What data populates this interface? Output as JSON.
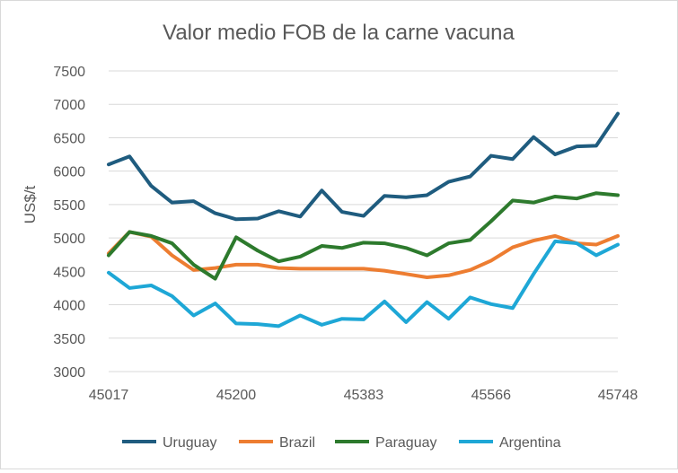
{
  "chart_data": {
    "type": "line",
    "title": "Valor medio FOB de la carne vacuna",
    "xlabel": "",
    "ylabel": "US$/t",
    "ylim": [
      3000,
      7500
    ],
    "yticks": [
      3000,
      3500,
      4000,
      4500,
      5000,
      5500,
      6000,
      6500,
      7000,
      7500
    ],
    "xlim": [
      45017,
      45748
    ],
    "xticks": [
      45017,
      45200,
      45383,
      45566,
      45748
    ],
    "grid": "horizontal",
    "legend": "bottom",
    "x": [
      45017,
      45047,
      45078,
      45108,
      45139,
      45170,
      45200,
      45231,
      45261,
      45292,
      45323,
      45352,
      45383,
      45413,
      45444,
      45474,
      45505,
      45536,
      45566,
      45597,
      45627,
      45658,
      45689,
      45717,
      45748
    ],
    "series": [
      {
        "name": "Uruguay",
        "color": "#1f5c7f",
        "values": [
          6100,
          6220,
          5780,
          5530,
          5550,
          5370,
          5280,
          5290,
          5400,
          5320,
          5710,
          5390,
          5330,
          5630,
          5610,
          5640,
          5840,
          5920,
          6230,
          6180,
          6510,
          6250,
          6370,
          6380,
          6860
        ]
      },
      {
        "name": "Brazil",
        "color": "#ed7d31",
        "values": [
          4770,
          5090,
          5020,
          4740,
          4520,
          4550,
          4600,
          4600,
          4550,
          4540,
          4540,
          4540,
          4540,
          4510,
          4460,
          4410,
          4440,
          4520,
          4660,
          4860,
          4960,
          5030,
          4920,
          4900,
          5030
        ]
      },
      {
        "name": "Paraguay",
        "color": "#2d7a2d",
        "values": [
          4740,
          5090,
          5030,
          4920,
          4600,
          4390,
          5010,
          4810,
          4650,
          4720,
          4880,
          4850,
          4930,
          4920,
          4850,
          4740,
          4920,
          4970,
          5250,
          5560,
          5530,
          5620,
          5590,
          5670,
          5640
        ]
      },
      {
        "name": "Argentina",
        "color": "#1ea7d6",
        "values": [
          4480,
          4250,
          4290,
          4130,
          3840,
          4020,
          3720,
          3710,
          3680,
          3840,
          3700,
          3790,
          3780,
          4050,
          3740,
          4040,
          3790,
          4110,
          4010,
          3950,
          4460,
          4950,
          4920,
          4740,
          4900
        ]
      }
    ]
  }
}
